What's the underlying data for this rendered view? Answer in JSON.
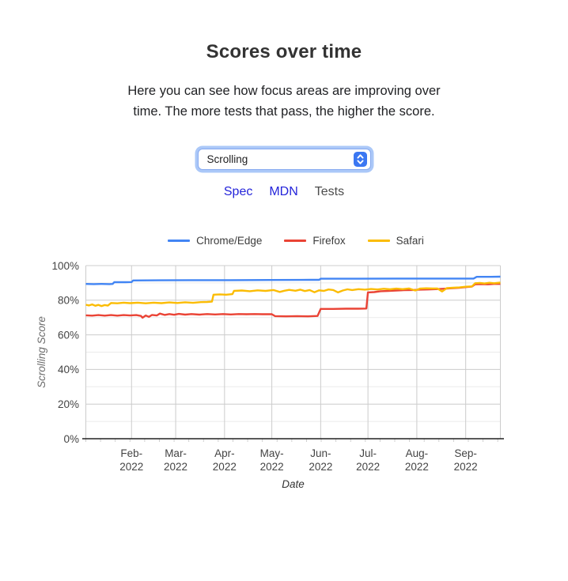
{
  "header": {
    "title": "Scores over time",
    "description": "Here you can see how focus areas are improving over time. The more tests that pass, the higher the score."
  },
  "selector": {
    "value": "Scrolling",
    "stepper_icon": "up-down-chevrons"
  },
  "links": {
    "spec": "Spec",
    "mdn": "MDN",
    "tests": "Tests"
  },
  "colors": {
    "link_blue": "#2424da",
    "link_muted": "#4c4c4c",
    "select_ring": "#abc8f8",
    "select_border": "#86a9f0",
    "stepper_blue": "#3b77f2",
    "grid_major": "#cccccc",
    "grid_minor": "#ebebeb",
    "axis_baseline": "#222222",
    "tick_text": "#444444",
    "axis_title_y": "#6b6b6b",
    "axis_title_x": "#333333"
  },
  "chart_data": {
    "type": "line",
    "title": "",
    "xlabel": "Date",
    "ylabel": "Scrolling Score",
    "ylim": [
      0,
      100
    ],
    "grid": true,
    "legend_position": "top",
    "x_domain_days": [
      3,
      266
    ],
    "y_ticks": [
      {
        "label": "0%",
        "value": 0
      },
      {
        "label": "20%",
        "value": 20
      },
      {
        "label": "40%",
        "value": 40
      },
      {
        "label": "60%",
        "value": 60
      },
      {
        "label": "80%",
        "value": 80
      },
      {
        "label": "100%",
        "value": 100
      }
    ],
    "x_ticks": [
      {
        "line1": "Feb-",
        "line2": "2022",
        "day": 32
      },
      {
        "line1": "Mar-",
        "line2": "2022",
        "day": 60
      },
      {
        "line1": "Apr-",
        "line2": "2022",
        "day": 91
      },
      {
        "line1": "May-",
        "line2": "2022",
        "day": 121
      },
      {
        "line1": "Jun-",
        "line2": "2022",
        "day": 152
      },
      {
        "line1": "Jul-",
        "line2": "2022",
        "day": 182
      },
      {
        "line1": "Aug-",
        "line2": "2022",
        "day": 213
      },
      {
        "line1": "Sep-",
        "line2": "2022",
        "day": 244
      }
    ],
    "series": [
      {
        "name": "Chrome/Edge",
        "color": "#4285f4",
        "points": [
          [
            3,
            89.4
          ],
          [
            8,
            89.3
          ],
          [
            13,
            89.4
          ],
          [
            18,
            89.3
          ],
          [
            20,
            89.4
          ],
          [
            21,
            90.4
          ],
          [
            28,
            90.4
          ],
          [
            32,
            90.5
          ],
          [
            33,
            91.4
          ],
          [
            50,
            91.5
          ],
          [
            70,
            91.6
          ],
          [
            95,
            91.6
          ],
          [
            120,
            91.7
          ],
          [
            145,
            91.8
          ],
          [
            151,
            91.8
          ],
          [
            152,
            92.4
          ],
          [
            175,
            92.4
          ],
          [
            200,
            92.5
          ],
          [
            225,
            92.5
          ],
          [
            249,
            92.5
          ],
          [
            251,
            93.5
          ],
          [
            260,
            93.5
          ],
          [
            266,
            93.6
          ]
        ]
      },
      {
        "name": "Firefox",
        "color": "#ea4335",
        "points": [
          [
            3,
            71.3
          ],
          [
            7,
            71.1
          ],
          [
            11,
            71.4
          ],
          [
            15,
            71.1
          ],
          [
            19,
            71.4
          ],
          [
            23,
            71.1
          ],
          [
            27,
            71.4
          ],
          [
            31,
            71.2
          ],
          [
            35,
            71.4
          ],
          [
            38,
            70.9
          ],
          [
            39,
            69.9
          ],
          [
            41,
            71.2
          ],
          [
            43,
            70.4
          ],
          [
            45,
            71.5
          ],
          [
            48,
            71.2
          ],
          [
            50,
            72.3
          ],
          [
            53,
            71.5
          ],
          [
            56,
            72.0
          ],
          [
            59,
            71.6
          ],
          [
            62,
            72.1
          ],
          [
            66,
            71.7
          ],
          [
            70,
            72.0
          ],
          [
            75,
            71.7
          ],
          [
            80,
            72.0
          ],
          [
            85,
            71.8
          ],
          [
            90,
            72.0
          ],
          [
            95,
            71.8
          ],
          [
            100,
            72.0
          ],
          [
            105,
            71.9
          ],
          [
            110,
            72.0
          ],
          [
            115,
            71.9
          ],
          [
            121,
            71.9
          ],
          [
            123,
            70.8
          ],
          [
            130,
            70.7
          ],
          [
            137,
            70.8
          ],
          [
            144,
            70.7
          ],
          [
            150,
            70.9
          ],
          [
            152,
            75.0
          ],
          [
            160,
            75.0
          ],
          [
            168,
            75.1
          ],
          [
            176,
            75.1
          ],
          [
            181,
            75.2
          ],
          [
            182,
            84.5
          ],
          [
            186,
            84.7
          ],
          [
            190,
            85.2
          ],
          [
            195,
            85.4
          ],
          [
            200,
            85.6
          ],
          [
            205,
            85.8
          ],
          [
            210,
            85.9
          ],
          [
            215,
            86.1
          ],
          [
            220,
            86.2
          ],
          [
            225,
            86.4
          ],
          [
            230,
            86.6
          ],
          [
            235,
            86.9
          ],
          [
            240,
            87.2
          ],
          [
            244,
            87.6
          ],
          [
            248,
            87.9
          ],
          [
            250,
            89.2
          ],
          [
            254,
            89.3
          ],
          [
            258,
            89.2
          ],
          [
            262,
            89.4
          ],
          [
            266,
            89.4
          ]
        ]
      },
      {
        "name": "Safari",
        "color": "#fbbc04",
        "points": [
          [
            3,
            77.4
          ],
          [
            5,
            77.0
          ],
          [
            7,
            77.6
          ],
          [
            9,
            76.8
          ],
          [
            11,
            77.3
          ],
          [
            13,
            76.6
          ],
          [
            15,
            77.2
          ],
          [
            17,
            76.9
          ],
          [
            19,
            78.4
          ],
          [
            23,
            78.2
          ],
          [
            27,
            78.6
          ],
          [
            31,
            78.3
          ],
          [
            36,
            78.6
          ],
          [
            41,
            78.2
          ],
          [
            46,
            78.6
          ],
          [
            51,
            78.3
          ],
          [
            56,
            78.7
          ],
          [
            61,
            78.4
          ],
          [
            66,
            78.8
          ],
          [
            71,
            78.5
          ],
          [
            76,
            78.9
          ],
          [
            80,
            79.0
          ],
          [
            83,
            79.2
          ],
          [
            84,
            83.2
          ],
          [
            88,
            83.4
          ],
          [
            92,
            83.2
          ],
          [
            96,
            83.5
          ],
          [
            97,
            85.4
          ],
          [
            102,
            85.6
          ],
          [
            107,
            85.2
          ],
          [
            112,
            85.7
          ],
          [
            117,
            85.4
          ],
          [
            122,
            85.9
          ],
          [
            126,
            84.8
          ],
          [
            129,
            85.5
          ],
          [
            132,
            86.0
          ],
          [
            136,
            85.5
          ],
          [
            139,
            86.1
          ],
          [
            142,
            85.3
          ],
          [
            145,
            85.9
          ],
          [
            148,
            84.6
          ],
          [
            151,
            85.7
          ],
          [
            154,
            85.4
          ],
          [
            157,
            86.2
          ],
          [
            160,
            85.9
          ],
          [
            163,
            84.5
          ],
          [
            166,
            85.6
          ],
          [
            169,
            86.3
          ],
          [
            172,
            85.9
          ],
          [
            176,
            86.4
          ],
          [
            180,
            86.1
          ],
          [
            184,
            86.5
          ],
          [
            188,
            86.2
          ],
          [
            192,
            86.6
          ],
          [
            196,
            86.3
          ],
          [
            200,
            86.7
          ],
          [
            204,
            86.4
          ],
          [
            208,
            86.8
          ],
          [
            212,
            85.6
          ],
          [
            215,
            86.7
          ],
          [
            219,
            86.9
          ],
          [
            223,
            86.8
          ],
          [
            226,
            86.8
          ],
          [
            229,
            85.0
          ],
          [
            232,
            87.0
          ],
          [
            236,
            87.2
          ],
          [
            240,
            87.4
          ],
          [
            244,
            87.8
          ],
          [
            248,
            88.0
          ],
          [
            250,
            89.8
          ],
          [
            253,
            90.0
          ],
          [
            256,
            89.7
          ],
          [
            259,
            90.1
          ],
          [
            262,
            89.8
          ],
          [
            266,
            90.2
          ]
        ]
      }
    ]
  }
}
